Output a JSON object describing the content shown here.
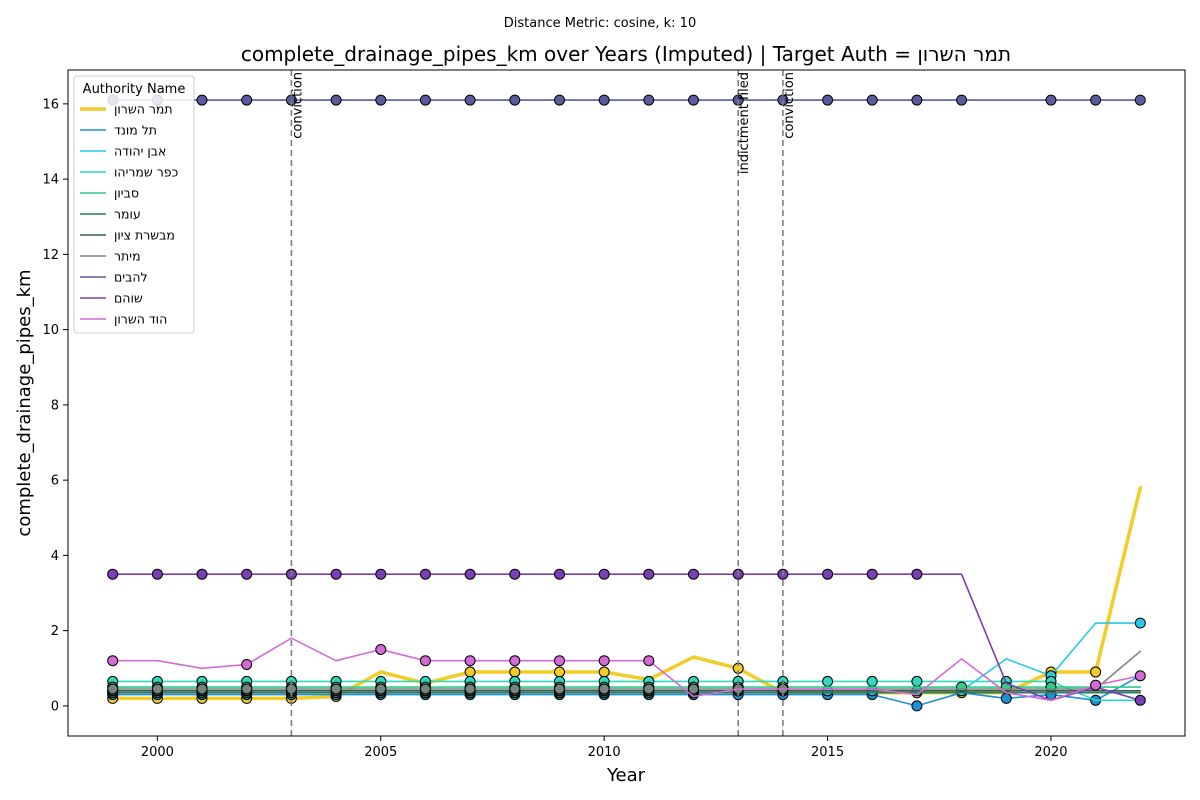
{
  "chart_data": {
    "type": "line",
    "suptitle": "Distance Metric: cosine, k: 10",
    "title": "complete_drainage_pipes_km over Years (Imputed) | Target Auth = תמר השרון",
    "xlabel": "Year",
    "ylabel": "complete_drainage_pipes_km",
    "xlim": [
      1998,
      2023
    ],
    "ylim": [
      -0.8,
      16.9
    ],
    "xticks": [
      2000,
      2005,
      2010,
      2015,
      2020
    ],
    "yticks": [
      0,
      2,
      4,
      6,
      8,
      10,
      12,
      14,
      16
    ],
    "grid": false,
    "legend": {
      "title": "Authority Name",
      "position": "top-left"
    },
    "events": [
      {
        "year": 2003,
        "label": "conviction"
      },
      {
        "year": 2013,
        "label": "indictment filed"
      },
      {
        "year": 2014,
        "label": "conviction"
      }
    ],
    "x": [
      1999,
      2000,
      2001,
      2002,
      2003,
      2004,
      2005,
      2006,
      2007,
      2008,
      2009,
      2010,
      2011,
      2012,
      2013,
      2014,
      2015,
      2016,
      2017,
      2018,
      2019,
      2020,
      2021,
      2022
    ],
    "series": [
      {
        "name": "תמר השרון",
        "color": "#f2cc27",
        "width": 3.5,
        "values": [
          0.2,
          0.2,
          0.2,
          0.2,
          0.2,
          0.25,
          0.9,
          0.6,
          0.9,
          0.9,
          0.9,
          0.9,
          0.7,
          1.3,
          1.0,
          0.35,
          0.35,
          0.35,
          0.35,
          0.35,
          0.35,
          0.9,
          0.9,
          5.8
        ],
        "markers": [
          1999,
          2000,
          2001,
          2002,
          2003,
          2004,
          2006,
          2007,
          2008,
          2009,
          2010,
          2013,
          2014,
          2015,
          2016,
          2017,
          2018,
          2020,
          2021
        ]
      },
      {
        "name": "תל מונד",
        "color": "#1f8fd6",
        "width": 1.6,
        "values": [
          0.3,
          0.3,
          0.3,
          0.3,
          0.3,
          0.3,
          0.3,
          0.3,
          0.3,
          0.3,
          0.3,
          0.3,
          0.3,
          0.3,
          0.3,
          0.3,
          0.3,
          0.3,
          0.0,
          0.35,
          0.2,
          0.3,
          0.15,
          0.8
        ],
        "markers": [
          1999,
          2000,
          2001,
          2002,
          2003,
          2004,
          2005,
          2006,
          2007,
          2008,
          2009,
          2010,
          2011,
          2012,
          2013,
          2014,
          2015,
          2016,
          2017,
          2019,
          2020,
          2021
        ]
      },
      {
        "name": "אבן יהודה",
        "color": "#27c9e6",
        "width": 1.6,
        "values": [
          0.4,
          0.4,
          0.4,
          0.4,
          0.4,
          0.4,
          0.4,
          0.4,
          0.4,
          0.4,
          0.4,
          0.4,
          0.4,
          0.4,
          0.4,
          0.4,
          0.4,
          0.4,
          0.4,
          0.4,
          1.25,
          0.8,
          2.2,
          2.2
        ],
        "markers": [
          1999,
          2000,
          2001,
          2002,
          2003,
          2004,
          2005,
          2006,
          2007,
          2008,
          2009,
          2010,
          2011,
          2012,
          2013,
          2014,
          2015,
          2016,
          2017,
          2018,
          2020,
          2022
        ]
      },
      {
        "name": "כפר שמריהו",
        "color": "#2fd9bf",
        "width": 1.6,
        "values": [
          0.65,
          0.65,
          0.65,
          0.65,
          0.65,
          0.65,
          0.65,
          0.65,
          0.65,
          0.65,
          0.65,
          0.65,
          0.65,
          0.65,
          0.65,
          0.65,
          0.65,
          0.65,
          0.65,
          0.65,
          0.65,
          0.65,
          0.15,
          0.15
        ],
        "markers": [
          1999,
          2000,
          2001,
          2002,
          2003,
          2004,
          2005,
          2006,
          2007,
          2008,
          2009,
          2010,
          2011,
          2012,
          2013,
          2014,
          2015,
          2016,
          2017,
          2019,
          2020
        ]
      },
      {
        "name": "סביון",
        "color": "#2fcc8b",
        "width": 1.6,
        "values": [
          0.5,
          0.5,
          0.5,
          0.5,
          0.5,
          0.5,
          0.5,
          0.5,
          0.5,
          0.5,
          0.5,
          0.5,
          0.5,
          0.5,
          0.5,
          0.5,
          0.5,
          0.5,
          0.5,
          0.5,
          0.5,
          0.5,
          0.5,
          0.5
        ],
        "markers": [
          1999,
          2000,
          2001,
          2002,
          2003,
          2004,
          2005,
          2006,
          2007,
          2008,
          2009,
          2010,
          2011,
          2012,
          2013,
          2014,
          2018,
          2019,
          2020
        ]
      },
      {
        "name": "עומר",
        "color": "#2e7d60",
        "width": 1.6,
        "values": [
          0.35,
          0.35,
          0.35,
          0.35,
          0.35,
          0.35,
          0.35,
          0.35,
          0.35,
          0.35,
          0.35,
          0.35,
          0.35,
          0.35,
          0.35,
          0.35,
          0.35,
          0.35,
          0.35,
          0.35,
          0.35,
          0.35,
          0.35,
          0.35
        ],
        "markers": [
          1999,
          2000,
          2001,
          2002,
          2003,
          2004,
          2005,
          2006,
          2007,
          2008,
          2009,
          2010,
          2011,
          2012
        ]
      },
      {
        "name": "מבשרת ציון",
        "color": "#355e50",
        "width": 1.6,
        "values": [
          0.4,
          0.4,
          0.4,
          0.4,
          0.4,
          0.4,
          0.4,
          0.4,
          0.4,
          0.4,
          0.4,
          0.4,
          0.4,
          0.4,
          0.4,
          0.4,
          0.4,
          0.4,
          0.4,
          0.4,
          0.4,
          0.4,
          0.4,
          0.4
        ],
        "markers": [
          1999,
          2000,
          2001,
          2002,
          2003,
          2004,
          2005,
          2006,
          2007,
          2008,
          2009,
          2010,
          2011,
          2012,
          2013,
          2014
        ]
      },
      {
        "name": "מיתר",
        "color": "#778581",
        "width": 1.6,
        "values": [
          0.45,
          0.45,
          0.45,
          0.45,
          0.45,
          0.45,
          0.45,
          0.45,
          0.45,
          0.45,
          0.45,
          0.45,
          0.45,
          0.45,
          0.45,
          0.45,
          0.45,
          0.45,
          0.45,
          0.45,
          0.45,
          0.45,
          0.45,
          1.45
        ],
        "markers": [
          1999,
          2000,
          2001,
          2002,
          2003,
          2004,
          2005,
          2006,
          2007,
          2008,
          2009,
          2010,
          2011,
          2012,
          2013,
          2014
        ]
      },
      {
        "name": "להבים",
        "color": "#5a5a9c",
        "width": 1.6,
        "values": [
          16.1,
          16.1,
          16.1,
          16.1,
          16.1,
          16.1,
          16.1,
          16.1,
          16.1,
          16.1,
          16.1,
          16.1,
          16.1,
          16.1,
          16.1,
          16.1,
          16.1,
          16.1,
          16.1,
          16.1,
          16.1,
          16.1,
          16.1,
          16.1
        ],
        "markers": [
          1999,
          2000,
          2001,
          2002,
          2003,
          2004,
          2005,
          2006,
          2007,
          2008,
          2009,
          2010,
          2011,
          2012,
          2013,
          2014,
          2015,
          2016,
          2017,
          2018,
          2020,
          2021,
          2022
        ]
      },
      {
        "name": "שוהם",
        "color": "#7a3fb5",
        "width": 1.6,
        "values": [
          3.5,
          3.5,
          3.5,
          3.5,
          3.5,
          3.5,
          3.5,
          3.5,
          3.5,
          3.5,
          3.5,
          3.5,
          3.5,
          3.5,
          3.5,
          3.5,
          3.5,
          3.5,
          3.5,
          3.5,
          0.6,
          0.15,
          0.5,
          0.15
        ],
        "markers": [
          1999,
          2000,
          2001,
          2002,
          2003,
          2004,
          2005,
          2006,
          2007,
          2008,
          2009,
          2010,
          2011,
          2012,
          2013,
          2014,
          2015,
          2016,
          2017,
          2022
        ]
      },
      {
        "name": "הוד השרון",
        "color": "#d46ad4",
        "width": 1.6,
        "values": [
          1.2,
          1.2,
          1.0,
          1.1,
          1.8,
          1.2,
          1.5,
          1.2,
          1.2,
          1.2,
          1.2,
          1.2,
          1.2,
          0.25,
          0.45,
          0.45,
          0.45,
          0.45,
          0.3,
          1.25,
          0.35,
          0.15,
          0.55,
          0.8
        ],
        "markers": [
          1999,
          2002,
          2005,
          2006,
          2007,
          2008,
          2009,
          2010,
          2011,
          2021,
          2022
        ]
      }
    ]
  }
}
